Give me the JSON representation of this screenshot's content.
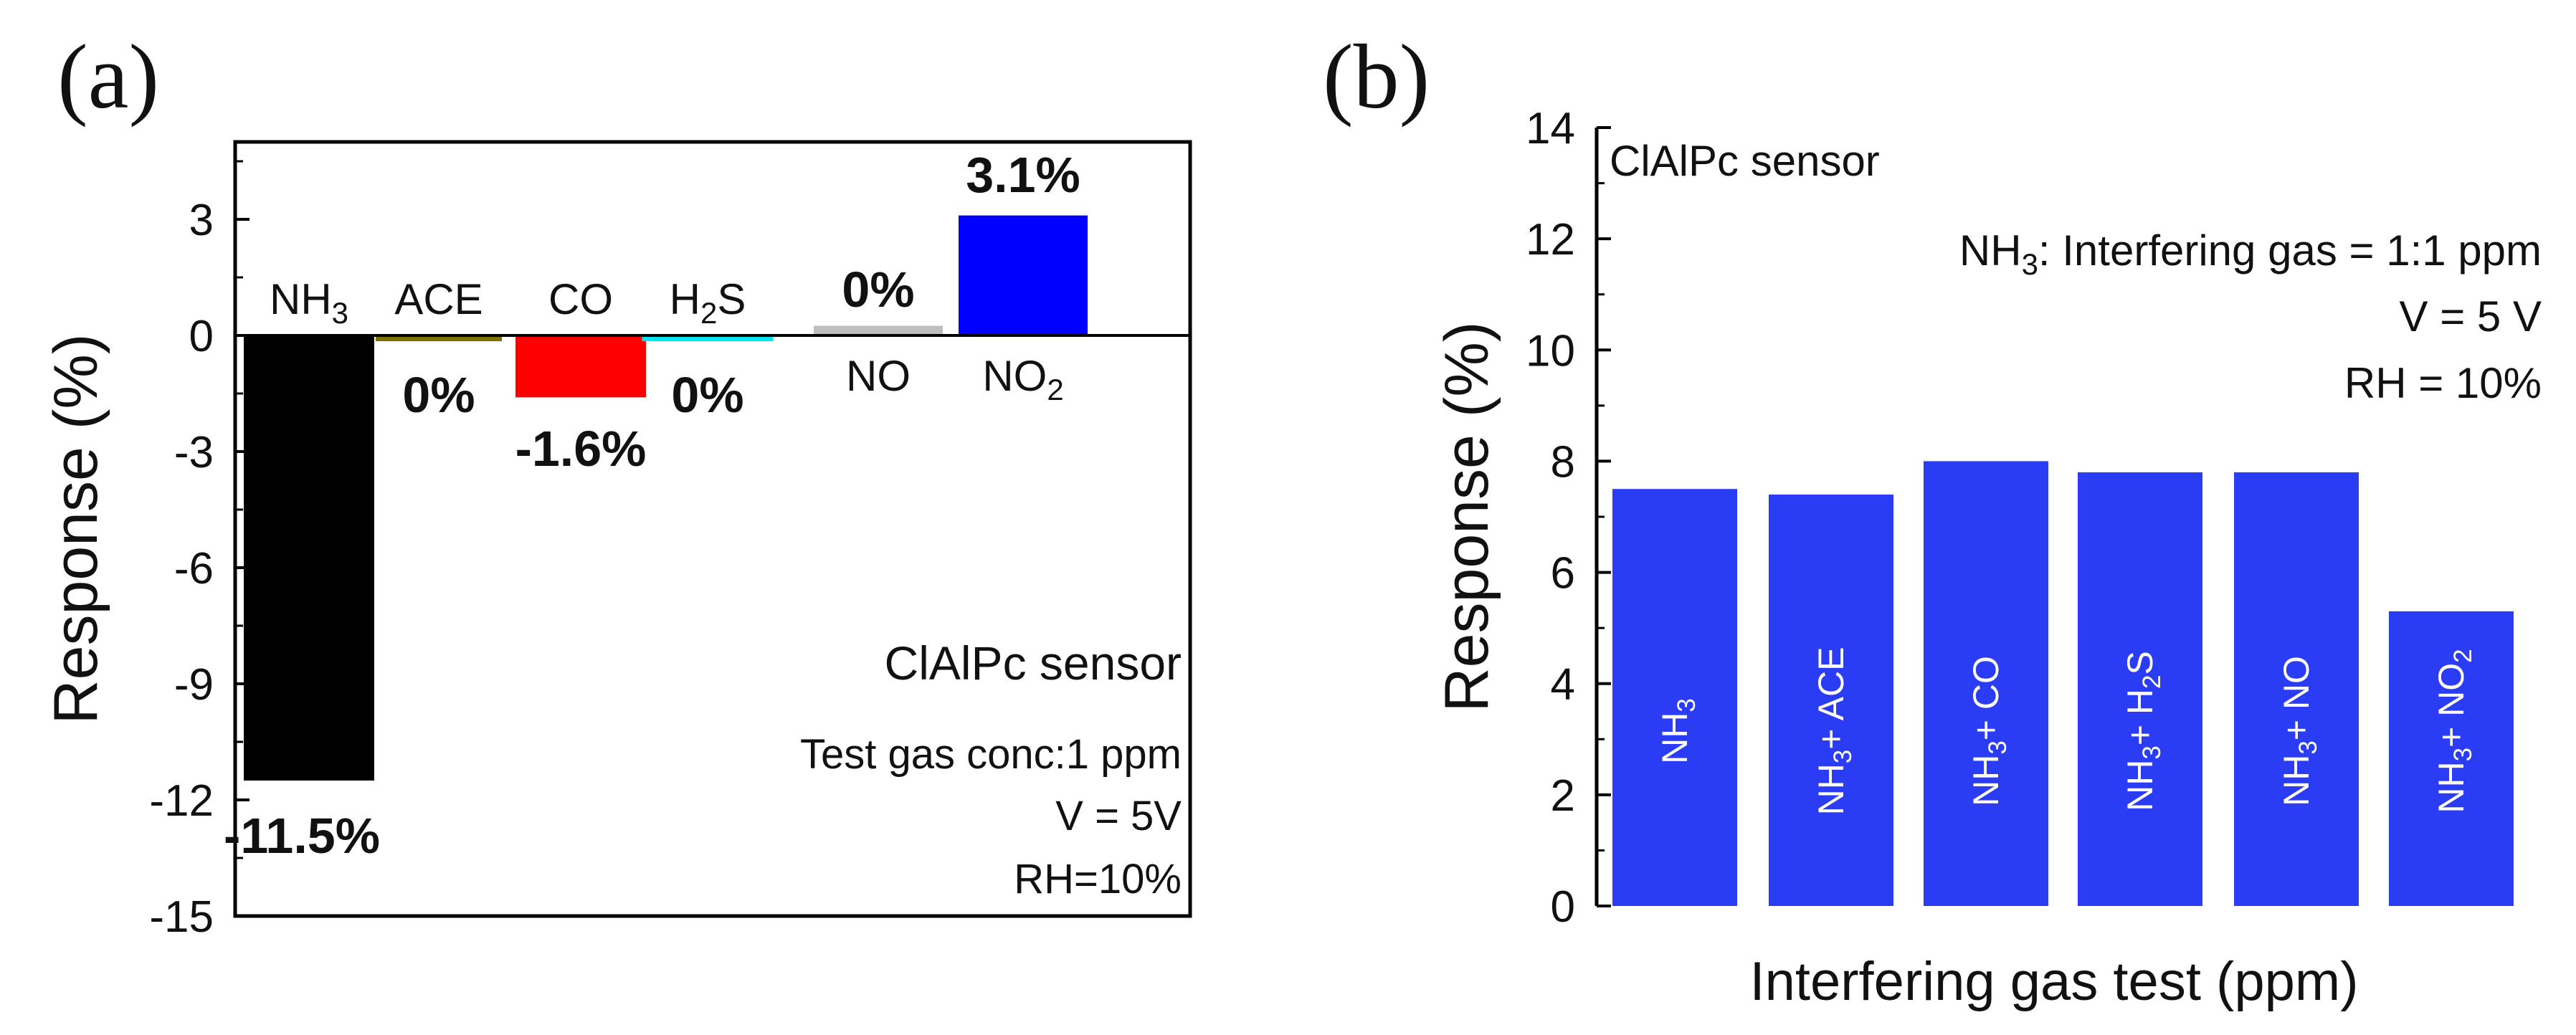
{
  "chart_data": [
    {
      "panel_label": "(a)",
      "type": "bar",
      "ylabel": "Response (%)",
      "xlabel": "",
      "ylim": [
        -15,
        5
      ],
      "yticks": [
        3,
        0,
        -3,
        -6,
        -9,
        -12,
        -15
      ],
      "ytick_labels": [
        "3",
        "0",
        "-3",
        "-6",
        "-9",
        "-12",
        "-15"
      ],
      "categories": [
        {
          "name": "NH3",
          "base": "NH",
          "sub": "3",
          "value": -11.5,
          "value_label": "-11.5%",
          "color": "#000000",
          "label_pos": "above"
        },
        {
          "name": "ACE",
          "base": "ACE",
          "sub": "",
          "value": -0.15,
          "value_label": "0%",
          "color": "#7b7200",
          "label_pos": "above"
        },
        {
          "name": "CO",
          "base": "CO",
          "sub": "",
          "value": -1.6,
          "value_label": "-1.6%",
          "color": "#ff0000",
          "label_pos": "above"
        },
        {
          "name": "H2S",
          "base": "H",
          "sub": "2",
          "tail": "S",
          "value": -0.15,
          "value_label": "0%",
          "color": "#00e5f0",
          "label_pos": "above"
        },
        {
          "name": "NO",
          "base": "NO",
          "sub": "",
          "value": 0.25,
          "value_label": "0%",
          "color": "#bfbfbf",
          "label_pos": "below"
        },
        {
          "name": "NO2",
          "base": "NO",
          "sub": "2",
          "value": 3.1,
          "value_label": "3.1%",
          "color": "#0000ff",
          "label_pos": "below"
        }
      ],
      "annotations": {
        "sensor": "ClAlPc sensor",
        "conc": "Test gas conc:1 ppm",
        "voltage": "V = 5V",
        "rh": "RH=10%"
      }
    },
    {
      "panel_label": "(b)",
      "type": "bar",
      "ylabel": "Response (%)",
      "xlabel": "Interfering gas test (ppm)",
      "ylim": [
        0,
        14
      ],
      "yticks": [
        0,
        2,
        4,
        6,
        8,
        10,
        12,
        14
      ],
      "ytick_labels": [
        "0",
        "2",
        "4",
        "6",
        "8",
        "10",
        "12",
        "14"
      ],
      "bar_color": "#2b3cf5",
      "categories": [
        {
          "name": "NH3",
          "base": "NH",
          "sub": "3",
          "tail": "",
          "value": 7.5
        },
        {
          "name": "NH3+ ACE",
          "base": "NH",
          "sub": "3",
          "tail": "+ ACE",
          "value": 7.4
        },
        {
          "name": "NH3+ CO",
          "base": "NH",
          "sub": "3",
          "tail": "+ CO",
          "value": 8.0
        },
        {
          "name": "NH3+ H2S",
          "base": "NH",
          "sub": "3",
          "tail": "+ H",
          "sub2": "2",
          "tail2": "S",
          "value": 7.8
        },
        {
          "name": "NH3+ NO",
          "base": "NH",
          "sub": "3",
          "tail": "+ NO",
          "value": 7.8
        },
        {
          "name": "NH3+ NO2",
          "base": "NH",
          "sub": "3",
          "tail": "+ NO",
          "sub2": "2",
          "value": 5.3
        }
      ],
      "annotations": {
        "sensor": "ClAlPc sensor",
        "ratio_base": "NH",
        "ratio_sub": "3",
        "ratio_tail": ": Interfering gas  = 1:1 ppm",
        "voltage": "V = 5 V",
        "rh": "RH = 10%"
      }
    }
  ]
}
